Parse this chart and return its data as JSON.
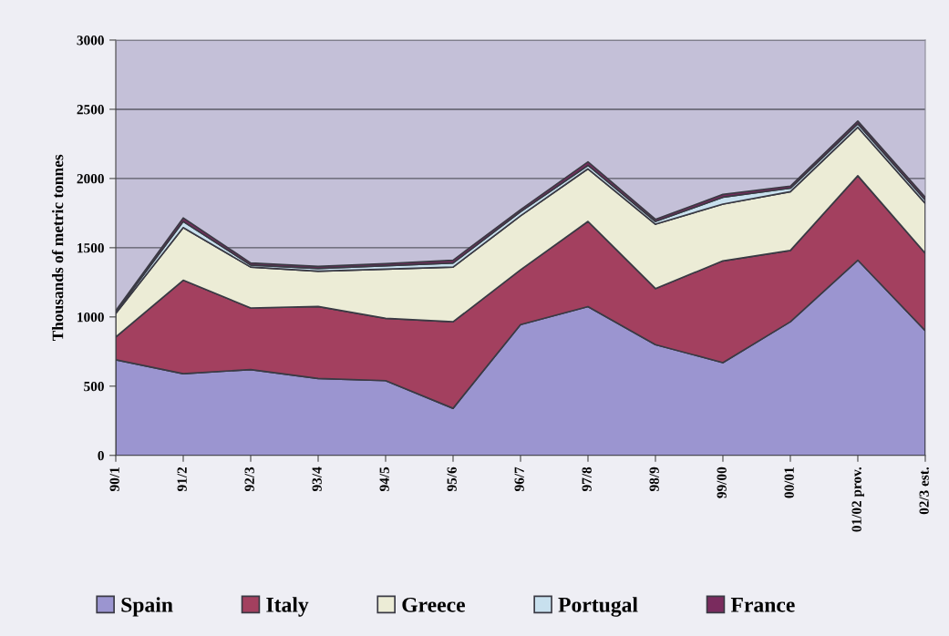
{
  "chart_data": {
    "type": "area",
    "stacked": true,
    "ylabel": "Thousands of metric tonnes",
    "categories": [
      "90/1",
      "91/2",
      "92/3",
      "93/4",
      "94/5",
      "95/6",
      "96/7",
      "97/8",
      "98/9",
      "99/00",
      "00/01",
      "01/02 prov.",
      "02/3 est."
    ],
    "series": [
      {
        "name": "Spain",
        "color": "#9b95d0",
        "values": [
          690,
          590,
          620,
          555,
          540,
          340,
          945,
          1075,
          800,
          670,
          965,
          1410,
          900
        ]
      },
      {
        "name": "Italy",
        "color": "#a3405f",
        "values": [
          165,
          675,
          445,
          520,
          450,
          625,
          395,
          615,
          405,
          735,
          515,
          610,
          560
        ]
      },
      {
        "name": "Greece",
        "color": "#ececd6",
        "values": [
          170,
          380,
          295,
          255,
          355,
          395,
          390,
          380,
          465,
          410,
          425,
          350,
          360
        ]
      },
      {
        "name": "Portugal",
        "color": "#c8e0ee",
        "values": [
          10,
          45,
          15,
          20,
          25,
          30,
          30,
          25,
          20,
          50,
          25,
          25,
          25
        ]
      },
      {
        "name": "France",
        "color": "#7a2b5e",
        "values": [
          10,
          25,
          15,
          15,
          15,
          20,
          15,
          25,
          15,
          20,
          15,
          20,
          20
        ]
      }
    ],
    "ylim": [
      0,
      3000
    ],
    "yticks": [
      0,
      500,
      1000,
      1500,
      2000,
      2500,
      3000
    ],
    "grid": "y",
    "legend": "bottom"
  }
}
